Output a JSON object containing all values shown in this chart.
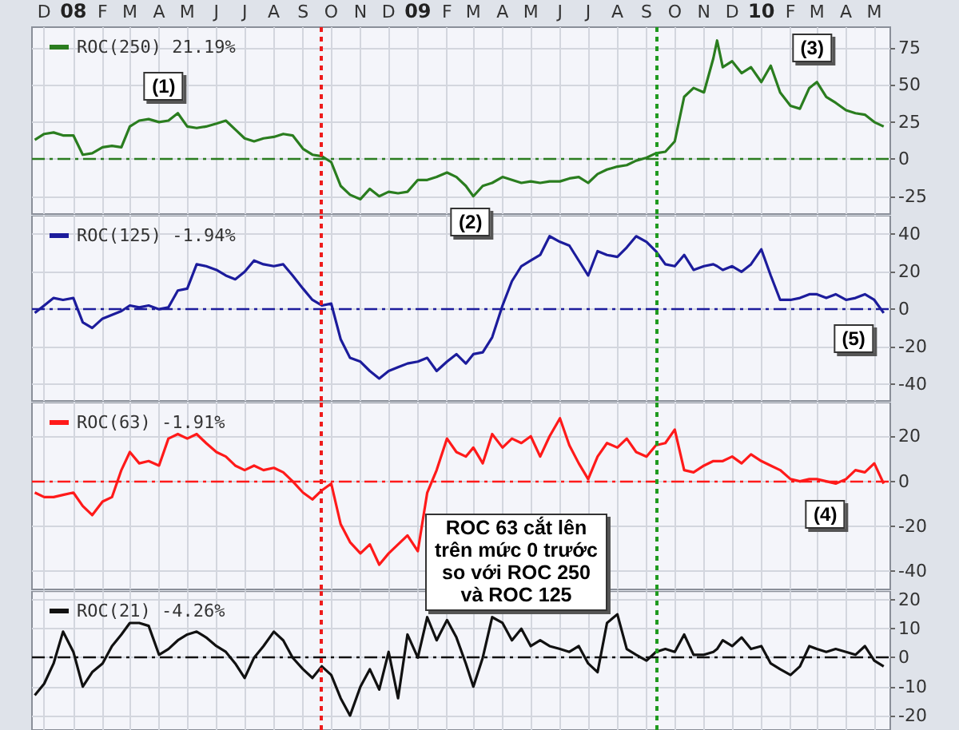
{
  "chart_data": [
    {
      "type": "line",
      "legend": "top left",
      "grid": true,
      "marker": "none",
      "xlim": [
        "2007-11-18",
        "2010-05-18"
      ],
      "xticks": [
        {
          "value": "2007-12-01",
          "label": "D"
        },
        {
          "value": "2008-01-01",
          "label": "08"
        },
        {
          "value": "2008-02-01",
          "label": "F"
        },
        {
          "value": "2008-03-01",
          "label": "M"
        },
        {
          "value": "2008-04-01",
          "label": "A"
        },
        {
          "value": "2008-05-01",
          "label": "M"
        },
        {
          "value": "2008-06-01",
          "label": "J"
        },
        {
          "value": "2008-07-01",
          "label": "J"
        },
        {
          "value": "2008-08-01",
          "label": "A"
        },
        {
          "value": "2008-09-01",
          "label": "S"
        },
        {
          "value": "2008-10-01",
          "label": "O"
        },
        {
          "value": "2008-11-01",
          "label": "N"
        },
        {
          "value": "2008-12-01",
          "label": "D"
        },
        {
          "value": "2009-01-01",
          "label": "09"
        },
        {
          "value": "2009-02-01",
          "label": "F"
        },
        {
          "value": "2009-03-01",
          "label": "M"
        },
        {
          "value": "2009-04-01",
          "label": "A"
        },
        {
          "value": "2009-05-01",
          "label": "M"
        },
        {
          "value": "2009-06-01",
          "label": "J"
        },
        {
          "value": "2009-07-01",
          "label": "J"
        },
        {
          "value": "2009-08-01",
          "label": "A"
        },
        {
          "value": "2009-09-01",
          "label": "S"
        },
        {
          "value": "2009-10-01",
          "label": "O"
        },
        {
          "value": "2009-11-01",
          "label": "N"
        },
        {
          "value": "2009-12-01",
          "label": "D"
        },
        {
          "value": "2010-01-01",
          "label": "10"
        },
        {
          "value": "2010-02-01",
          "label": "F"
        },
        {
          "value": "2010-03-01",
          "label": "M"
        },
        {
          "value": "2010-04-01",
          "label": "A"
        },
        {
          "value": "2010-05-01",
          "label": "M"
        }
      ],
      "ylim": [
        -37,
        89
      ],
      "yticks": [
        -25,
        0,
        25,
        50,
        75
      ],
      "x": [
        "2007-11-21",
        "2007-12-01",
        "2007-12-11",
        "2007-12-21",
        "2008-01-01",
        "2008-01-11",
        "2008-01-21",
        "2008-02-01",
        "2008-02-11",
        "2008-02-21",
        "2008-03-01",
        "2008-03-11",
        "2008-03-21",
        "2008-04-01",
        "2008-04-11",
        "2008-04-21",
        "2008-05-01",
        "2008-05-11",
        "2008-05-21",
        "2008-06-01",
        "2008-06-11",
        "2008-06-21",
        "2008-07-01",
        "2008-07-11",
        "2008-07-21",
        "2008-08-01",
        "2008-08-11",
        "2008-08-21",
        "2008-09-01",
        "2008-09-11",
        "2008-09-21",
        "2008-10-01",
        "2008-10-11",
        "2008-10-21",
        "2008-11-01",
        "2008-11-11",
        "2008-11-21",
        "2008-12-01",
        "2008-12-11",
        "2008-12-21",
        "2009-01-01",
        "2009-01-11",
        "2009-01-21",
        "2009-02-01",
        "2009-02-11",
        "2009-02-21",
        "2009-03-01",
        "2009-03-11",
        "2009-03-21",
        "2009-04-01",
        "2009-04-11",
        "2009-04-21",
        "2009-05-01",
        "2009-05-11",
        "2009-05-21",
        "2009-06-01",
        "2009-06-11",
        "2009-06-21",
        "2009-07-01",
        "2009-07-11",
        "2009-07-21",
        "2009-08-01",
        "2009-08-11",
        "2009-08-21",
        "2009-09-01",
        "2009-09-11",
        "2009-09-21",
        "2009-10-01",
        "2009-10-11",
        "2009-10-21",
        "2009-11-01",
        "2009-11-11",
        "2009-11-15",
        "2009-11-21",
        "2009-12-01",
        "2009-12-11",
        "2009-12-21",
        "2010-01-01",
        "2010-01-11",
        "2010-01-21",
        "2010-02-01",
        "2010-02-11",
        "2010-02-21",
        "2010-03-01",
        "2010-03-11",
        "2010-03-21",
        "2010-04-01",
        "2010-04-11",
        "2010-04-21",
        "2010-05-01",
        "2010-05-11"
      ],
      "series": [
        {
          "name": "ROC(250) 21.19%",
          "color": "#2a7d1f",
          "values": [
            13,
            17,
            18,
            16,
            16,
            3,
            4,
            8,
            9,
            8,
            22,
            26,
            27,
            25,
            26,
            31,
            22,
            21,
            22,
            24,
            26,
            20,
            14,
            12,
            14,
            15,
            17,
            16,
            7,
            3,
            2,
            -2,
            -18,
            -24,
            -27,
            -20,
            -25,
            -22,
            -23,
            -22,
            -14,
            -14,
            -12,
            -9,
            -12,
            -18,
            -25,
            -18,
            -16,
            -12,
            -14,
            -16,
            -15,
            -16,
            -15,
            -15,
            -13,
            -12,
            -16,
            -10,
            -7,
            -5,
            -4,
            -1,
            1,
            4,
            5,
            12,
            42,
            48,
            45,
            68,
            80,
            62,
            66,
            58,
            62,
            52,
            63,
            45,
            36,
            34,
            48,
            52,
            42,
            38,
            33,
            31,
            30,
            25,
            22
          ]
        }
      ],
      "ref_lines": [
        {
          "axis": "y",
          "value": 0,
          "color": "#2a7d1f",
          "line_style": "dashed"
        },
        {
          "axis": "x",
          "value": "2008-09-20",
          "color": "#ee1c1c",
          "line_style": "dotted"
        },
        {
          "axis": "x",
          "value": "2009-09-11",
          "color": "#1f9a1f",
          "line_style": "dotted"
        }
      ],
      "annotations": [
        {
          "text": "(1)",
          "x": "2008-04-06",
          "y": 49
        },
        {
          "text": "(3)",
          "x": "2010-02-24",
          "y": 75
        }
      ]
    },
    {
      "type": "line",
      "legend": "top left",
      "grid": true,
      "marker": "none",
      "tick_labels": "y",
      "xlim": [
        "2007-11-18",
        "2010-05-18"
      ],
      "xticks": [
        {
          "value": "2007-12-01",
          "label": null
        },
        {
          "value": "2008-01-01",
          "label": null
        },
        {
          "value": "2008-02-01",
          "label": null
        },
        {
          "value": "2008-03-01",
          "label": null
        },
        {
          "value": "2008-04-01",
          "label": null
        },
        {
          "value": "2008-05-01",
          "label": null
        },
        {
          "value": "2008-06-01",
          "label": null
        },
        {
          "value": "2008-07-01",
          "label": null
        },
        {
          "value": "2008-08-01",
          "label": null
        },
        {
          "value": "2008-09-01",
          "label": null
        },
        {
          "value": "2008-10-01",
          "label": null
        },
        {
          "value": "2008-11-01",
          "label": null
        },
        {
          "value": "2008-12-01",
          "label": null
        },
        {
          "value": "2009-01-01",
          "label": null
        },
        {
          "value": "2009-02-01",
          "label": null
        },
        {
          "value": "2009-03-01",
          "label": null
        },
        {
          "value": "2009-04-01",
          "label": null
        },
        {
          "value": "2009-05-01",
          "label": null
        },
        {
          "value": "2009-06-01",
          "label": null
        },
        {
          "value": "2009-07-01",
          "label": null
        },
        {
          "value": "2009-08-01",
          "label": null
        },
        {
          "value": "2009-09-01",
          "label": null
        },
        {
          "value": "2009-10-01",
          "label": null
        },
        {
          "value": "2009-11-01",
          "label": null
        },
        {
          "value": "2009-12-01",
          "label": null
        },
        {
          "value": "2010-01-01",
          "label": null
        },
        {
          "value": "2010-02-01",
          "label": null
        },
        {
          "value": "2010-03-01",
          "label": null
        },
        {
          "value": "2010-04-01",
          "label": null
        },
        {
          "value": "2010-05-01",
          "label": null
        }
      ],
      "ylim": [
        -49,
        50
      ],
      "yticks": [
        -40,
        -20,
        0,
        20,
        40
      ],
      "x": [
        "2007-11-21",
        "2007-12-01",
        "2007-12-11",
        "2007-12-21",
        "2008-01-01",
        "2008-01-11",
        "2008-01-21",
        "2008-02-01",
        "2008-02-11",
        "2008-02-21",
        "2008-03-01",
        "2008-03-11",
        "2008-03-21",
        "2008-04-01",
        "2008-04-11",
        "2008-04-21",
        "2008-05-01",
        "2008-05-11",
        "2008-05-21",
        "2008-06-01",
        "2008-06-11",
        "2008-06-21",
        "2008-07-01",
        "2008-07-11",
        "2008-07-21",
        "2008-08-01",
        "2008-08-11",
        "2008-08-21",
        "2008-09-01",
        "2008-09-11",
        "2008-09-21",
        "2008-10-01",
        "2008-10-11",
        "2008-10-21",
        "2008-11-01",
        "2008-11-11",
        "2008-11-21",
        "2008-12-01",
        "2008-12-11",
        "2008-12-21",
        "2009-01-01",
        "2009-01-11",
        "2009-01-21",
        "2009-02-01",
        "2009-02-11",
        "2009-02-21",
        "2009-03-01",
        "2009-03-11",
        "2009-03-21",
        "2009-04-01",
        "2009-04-11",
        "2009-04-21",
        "2009-05-01",
        "2009-05-11",
        "2009-05-21",
        "2009-06-01",
        "2009-06-11",
        "2009-06-21",
        "2009-07-01",
        "2009-07-11",
        "2009-07-21",
        "2009-08-01",
        "2009-08-11",
        "2009-08-21",
        "2009-09-01",
        "2009-09-11",
        "2009-09-21",
        "2009-10-01",
        "2009-10-11",
        "2009-10-21",
        "2009-11-01",
        "2009-11-11",
        "2009-11-15",
        "2009-11-21",
        "2009-12-01",
        "2009-12-11",
        "2009-12-21",
        "2010-01-01",
        "2010-01-11",
        "2010-01-21",
        "2010-02-01",
        "2010-02-11",
        "2010-02-21",
        "2010-03-01",
        "2010-03-11",
        "2010-03-21",
        "2010-04-01",
        "2010-04-11",
        "2010-04-21",
        "2010-05-01",
        "2010-05-11"
      ],
      "series": [
        {
          "name": "ROC(125) -1.94%",
          "color": "#1c1c9c",
          "values": [
            -2,
            2,
            6,
            5,
            6,
            -7,
            -10,
            -5,
            -3,
            -1,
            2,
            1,
            2,
            0,
            1,
            10,
            11,
            24,
            23,
            21,
            18,
            16,
            20,
            26,
            24,
            23,
            24,
            18,
            11,
            5,
            2,
            3,
            -16,
            -26,
            -28,
            -33,
            -37,
            -33,
            -31,
            -29,
            -28,
            -26,
            -33,
            -28,
            -24,
            -29,
            -24,
            -23,
            -15,
            2,
            15,
            23,
            26,
            29,
            39,
            36,
            34,
            26,
            18,
            31,
            29,
            28,
            33,
            39,
            36,
            31,
            24,
            23,
            29,
            21,
            23,
            24,
            23,
            21,
            23,
            20,
            24,
            32,
            18,
            5,
            5,
            6,
            8,
            8,
            6,
            8,
            5,
            6,
            8,
            5,
            -2
          ]
        }
      ],
      "ref_lines": [
        {
          "axis": "y",
          "value": 0,
          "color": "#1c1c9c",
          "line_style": "dashed"
        },
        {
          "axis": "x",
          "value": "2008-09-20",
          "color": "#ee1c1c",
          "line_style": "dotted"
        },
        {
          "axis": "x",
          "value": "2009-09-11",
          "color": "#1f9a1f",
          "line_style": "dotted"
        }
      ],
      "annotations": [
        {
          "text": "(2)",
          "x": "2009-02-26",
          "y": 47
        },
        {
          "text": "(5)",
          "x": "2010-04-09",
          "y": -16
        }
      ]
    },
    {
      "type": "line",
      "legend": "top left",
      "grid": true,
      "marker": "none",
      "tick_labels": "y",
      "xlim": [
        "2007-11-18",
        "2010-05-18"
      ],
      "xticks": [
        {
          "value": "2007-12-01",
          "label": null
        },
        {
          "value": "2008-01-01",
          "label": null
        },
        {
          "value": "2008-02-01",
          "label": null
        },
        {
          "value": "2008-03-01",
          "label": null
        },
        {
          "value": "2008-04-01",
          "label": null
        },
        {
          "value": "2008-05-01",
          "label": null
        },
        {
          "value": "2008-06-01",
          "label": null
        },
        {
          "value": "2008-07-01",
          "label": null
        },
        {
          "value": "2008-08-01",
          "label": null
        },
        {
          "value": "2008-09-01",
          "label": null
        },
        {
          "value": "2008-10-01",
          "label": null
        },
        {
          "value": "2008-11-01",
          "label": null
        },
        {
          "value": "2008-12-01",
          "label": null
        },
        {
          "value": "2009-01-01",
          "label": null
        },
        {
          "value": "2009-02-01",
          "label": null
        },
        {
          "value": "2009-03-01",
          "label": null
        },
        {
          "value": "2009-04-01",
          "label": null
        },
        {
          "value": "2009-05-01",
          "label": null
        },
        {
          "value": "2009-06-01",
          "label": null
        },
        {
          "value": "2009-07-01",
          "label": null
        },
        {
          "value": "2009-08-01",
          "label": null
        },
        {
          "value": "2009-09-01",
          "label": null
        },
        {
          "value": "2009-10-01",
          "label": null
        },
        {
          "value": "2009-11-01",
          "label": null
        },
        {
          "value": "2009-12-01",
          "label": null
        },
        {
          "value": "2010-01-01",
          "label": null
        },
        {
          "value": "2010-02-01",
          "label": null
        },
        {
          "value": "2010-03-01",
          "label": null
        },
        {
          "value": "2010-04-01",
          "label": null
        },
        {
          "value": "2010-05-01",
          "label": null
        }
      ],
      "ylim": [
        -48,
        35
      ],
      "yticks": [
        -40,
        -20,
        0,
        20
      ],
      "x": [
        "2007-11-21",
        "2007-12-01",
        "2007-12-11",
        "2007-12-21",
        "2008-01-01",
        "2008-01-11",
        "2008-01-21",
        "2008-02-01",
        "2008-02-11",
        "2008-02-21",
        "2008-03-01",
        "2008-03-11",
        "2008-03-21",
        "2008-04-01",
        "2008-04-11",
        "2008-04-21",
        "2008-05-01",
        "2008-05-11",
        "2008-05-21",
        "2008-06-01",
        "2008-06-11",
        "2008-06-21",
        "2008-07-01",
        "2008-07-11",
        "2008-07-21",
        "2008-08-01",
        "2008-08-11",
        "2008-08-21",
        "2008-09-01",
        "2008-09-11",
        "2008-09-21",
        "2008-10-01",
        "2008-10-11",
        "2008-10-21",
        "2008-11-01",
        "2008-11-11",
        "2008-11-21",
        "2008-12-01",
        "2008-12-11",
        "2008-12-21",
        "2009-01-01",
        "2009-01-11",
        "2009-01-21",
        "2009-02-01",
        "2009-02-11",
        "2009-02-21",
        "2009-03-01",
        "2009-03-11",
        "2009-03-21",
        "2009-04-01",
        "2009-04-11",
        "2009-04-21",
        "2009-05-01",
        "2009-05-11",
        "2009-05-21",
        "2009-06-01",
        "2009-06-11",
        "2009-06-21",
        "2009-07-01",
        "2009-07-11",
        "2009-07-21",
        "2009-08-01",
        "2009-08-11",
        "2009-08-21",
        "2009-09-01",
        "2009-09-11",
        "2009-09-21",
        "2009-10-01",
        "2009-10-11",
        "2009-10-21",
        "2009-11-01",
        "2009-11-11",
        "2009-11-15",
        "2009-11-21",
        "2009-12-01",
        "2009-12-11",
        "2009-12-21",
        "2010-01-01",
        "2010-01-11",
        "2010-01-21",
        "2010-02-01",
        "2010-02-11",
        "2010-02-21",
        "2010-03-01",
        "2010-03-11",
        "2010-03-21",
        "2010-04-01",
        "2010-04-11",
        "2010-04-21",
        "2010-05-01",
        "2010-05-11"
      ],
      "series": [
        {
          "name": "ROC(63) -1.91%",
          "color": "#ff1a1a",
          "values": [
            -5,
            -7,
            -7,
            -6,
            -5,
            -11,
            -15,
            -9,
            -7,
            5,
            13,
            8,
            9,
            7,
            19,
            21,
            19,
            21,
            17,
            13,
            11,
            7,
            5,
            7,
            5,
            6,
            4,
            0,
            -5,
            -8,
            -4,
            -1,
            -19,
            -27,
            -32,
            -28,
            -37,
            -32,
            -28,
            -24,
            -31,
            -5,
            5,
            19,
            13,
            11,
            15,
            8,
            21,
            15,
            19,
            17,
            20,
            11,
            20,
            28,
            16,
            8,
            1,
            11,
            17,
            15,
            19,
            13,
            11,
            16,
            17,
            23,
            5,
            4,
            7,
            9,
            9,
            9,
            11,
            8,
            12,
            9,
            7,
            5,
            1,
            0,
            1,
            1,
            0,
            -1,
            1,
            5,
            4,
            8,
            -1
          ]
        }
      ],
      "ref_lines": [
        {
          "axis": "y",
          "value": 0,
          "color": "#ff1a1a",
          "line_style": "dashed"
        },
        {
          "axis": "x",
          "value": "2008-09-20",
          "color": "#ee1c1c",
          "line_style": "dotted"
        },
        {
          "axis": "x",
          "value": "2009-09-11",
          "color": "#1f9a1f",
          "line_style": "dotted"
        }
      ],
      "annotations": [
        {
          "text": "(4)",
          "x": "2010-03-10",
          "y": -15
        },
        "ROC 63 cắt lên trên mức 0 trước so với ROC 250 và ROC 125"
      ]
    },
    {
      "type": "line",
      "legend": "top left",
      "grid": true,
      "marker": "none",
      "tick_labels": "y",
      "xlim": [
        "2007-11-18",
        "2010-05-18"
      ],
      "xticks": [
        {
          "value": "2007-12-01",
          "label": null
        },
        {
          "value": "2008-01-01",
          "label": null
        },
        {
          "value": "2008-02-01",
          "label": null
        },
        {
          "value": "2008-03-01",
          "label": null
        },
        {
          "value": "2008-04-01",
          "label": null
        },
        {
          "value": "2008-05-01",
          "label": null
        },
        {
          "value": "2008-06-01",
          "label": null
        },
        {
          "value": "2008-07-01",
          "label": null
        },
        {
          "value": "2008-08-01",
          "label": null
        },
        {
          "value": "2008-09-01",
          "label": null
        },
        {
          "value": "2008-10-01",
          "label": null
        },
        {
          "value": "2008-11-01",
          "label": null
        },
        {
          "value": "2008-12-01",
          "label": null
        },
        {
          "value": "2009-01-01",
          "label": null
        },
        {
          "value": "2009-02-01",
          "label": null
        },
        {
          "value": "2009-03-01",
          "label": null
        },
        {
          "value": "2009-04-01",
          "label": null
        },
        {
          "value": "2009-05-01",
          "label": null
        },
        {
          "value": "2009-06-01",
          "label": null
        },
        {
          "value": "2009-07-01",
          "label": null
        },
        {
          "value": "2009-08-01",
          "label": null
        },
        {
          "value": "2009-09-01",
          "label": null
        },
        {
          "value": "2009-10-01",
          "label": null
        },
        {
          "value": "2009-11-01",
          "label": null
        },
        {
          "value": "2009-12-01",
          "label": null
        },
        {
          "value": "2010-01-01",
          "label": null
        },
        {
          "value": "2010-02-01",
          "label": null
        },
        {
          "value": "2010-03-01",
          "label": null
        },
        {
          "value": "2010-04-01",
          "label": null
        },
        {
          "value": "2010-05-01",
          "label": null
        }
      ],
      "ylim": [
        -25,
        23
      ],
      "yticks": [
        -20,
        -10,
        0,
        10,
        20
      ],
      "x": [
        "2007-11-21",
        "2007-12-01",
        "2007-12-11",
        "2007-12-21",
        "2008-01-01",
        "2008-01-11",
        "2008-01-21",
        "2008-02-01",
        "2008-02-11",
        "2008-02-21",
        "2008-03-01",
        "2008-03-11",
        "2008-03-21",
        "2008-04-01",
        "2008-04-11",
        "2008-04-21",
        "2008-05-01",
        "2008-05-11",
        "2008-05-21",
        "2008-06-01",
        "2008-06-11",
        "2008-06-21",
        "2008-07-01",
        "2008-07-11",
        "2008-07-21",
        "2008-08-01",
        "2008-08-11",
        "2008-08-21",
        "2008-09-01",
        "2008-09-11",
        "2008-09-21",
        "2008-10-01",
        "2008-10-11",
        "2008-10-21",
        "2008-11-01",
        "2008-11-11",
        "2008-11-21",
        "2008-12-01",
        "2008-12-11",
        "2008-12-21",
        "2009-01-01",
        "2009-01-11",
        "2009-01-21",
        "2009-02-01",
        "2009-02-11",
        "2009-02-21",
        "2009-03-01",
        "2009-03-11",
        "2009-03-21",
        "2009-04-01",
        "2009-04-11",
        "2009-04-21",
        "2009-05-01",
        "2009-05-11",
        "2009-05-21",
        "2009-06-01",
        "2009-06-11",
        "2009-06-21",
        "2009-07-01",
        "2009-07-11",
        "2009-07-21",
        "2009-08-01",
        "2009-08-11",
        "2009-08-21",
        "2009-09-01",
        "2009-09-11",
        "2009-09-21",
        "2009-10-01",
        "2009-10-11",
        "2009-10-21",
        "2009-11-01",
        "2009-11-11",
        "2009-11-15",
        "2009-11-21",
        "2009-12-01",
        "2009-12-11",
        "2009-12-21",
        "2010-01-01",
        "2010-01-11",
        "2010-01-21",
        "2010-02-01",
        "2010-02-11",
        "2010-02-21",
        "2010-03-01",
        "2010-03-11",
        "2010-03-21",
        "2010-04-01",
        "2010-04-11",
        "2010-04-21",
        "2010-05-01",
        "2010-05-11"
      ],
      "series": [
        {
          "name": "ROC(21) -4.26%",
          "color": "#111111",
          "values": [
            -13,
            -9,
            -2,
            9,
            2,
            -10,
            -5,
            -2,
            4,
            8,
            12,
            12,
            11,
            1,
            3,
            6,
            8,
            9,
            7,
            4,
            2,
            -2,
            -7,
            0,
            4,
            9,
            6,
            0,
            -4,
            -7,
            -3,
            -6,
            -14,
            -20,
            -10,
            -4,
            -11,
            2,
            -14,
            8,
            0,
            14,
            6,
            13,
            7,
            -2,
            -10,
            0,
            14,
            12,
            6,
            10,
            4,
            6,
            4,
            3,
            2,
            4,
            -2,
            -5,
            12,
            15,
            3,
            1,
            -1,
            2,
            3,
            2,
            8,
            1,
            1,
            2,
            3,
            6,
            4,
            7,
            3,
            4,
            -2,
            -4,
            -6,
            -3,
            4,
            3,
            2,
            3,
            2,
            1,
            4,
            -1,
            -3
          ]
        }
      ],
      "ref_lines": [
        {
          "axis": "y",
          "value": 0,
          "color": "#111111",
          "line_style": "dashed"
        },
        {
          "axis": "x",
          "value": "2008-09-20",
          "color": "#ee1c1c",
          "line_style": "dotted"
        },
        {
          "axis": "x",
          "value": "2009-09-11",
          "color": "#1f9a1f",
          "line_style": "dotted"
        }
      ]
    }
  ]
}
